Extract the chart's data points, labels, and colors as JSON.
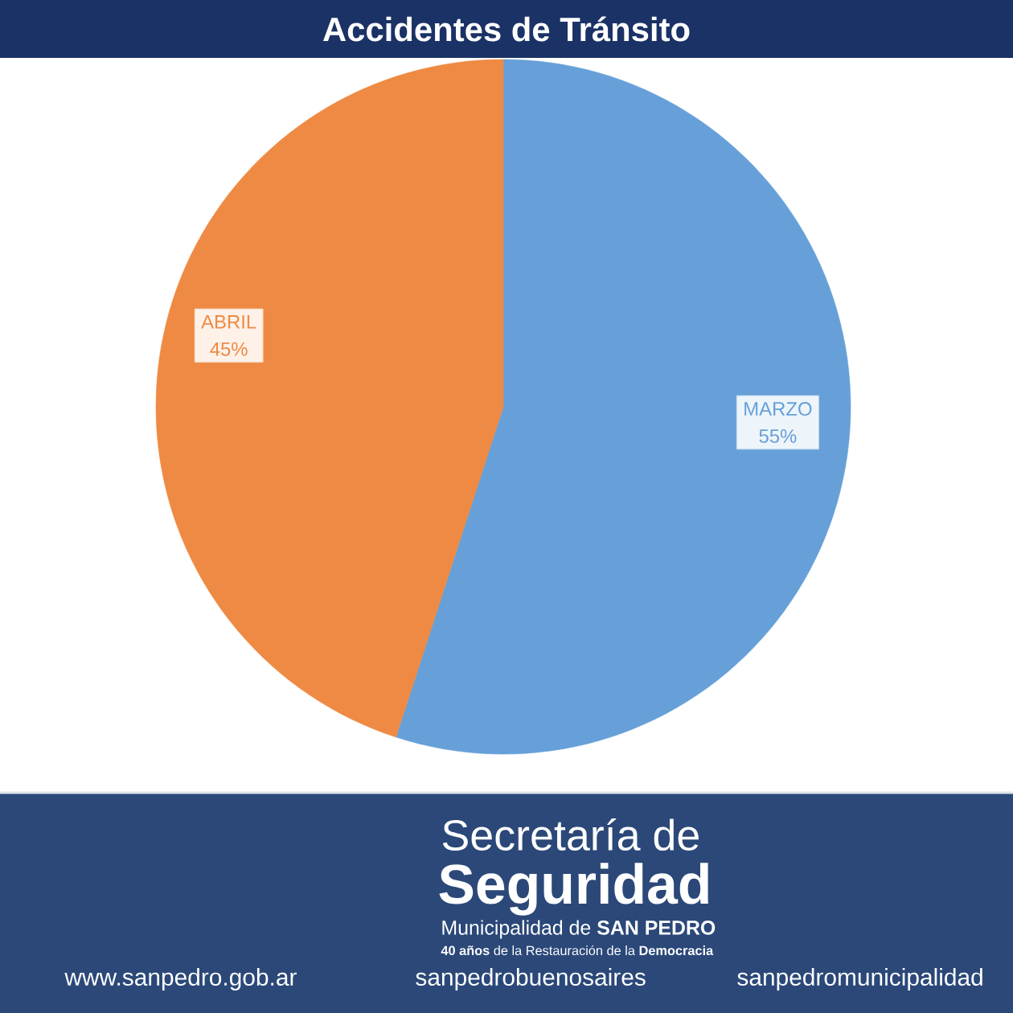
{
  "chart_data": {
    "type": "pie",
    "title": "Accidentes de Tránsito",
    "categories": [
      "MARZO",
      "ABRIL"
    ],
    "values": [
      55,
      45
    ],
    "colors": [
      "#67a0d8",
      "#ee8a43"
    ],
    "value_labels": [
      "55%",
      "45%"
    ],
    "annotations": [
      "Secretaría de",
      "Seguridad",
      "Municipalidad de **SAN PEDRO**",
      "**40 años** de la Restauración de la **Democracia**",
      "www.sanpedro.gob.ar",
      "sanpedrobuenosaires",
      "sanpedromunicipalidad"
    ]
  }
}
